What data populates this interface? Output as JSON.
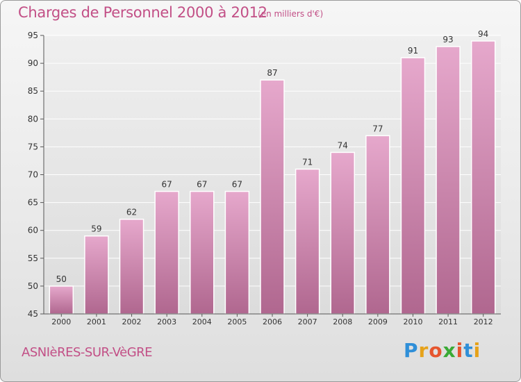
{
  "header": {
    "title": "Charges de Personnel 2000 à 2012",
    "subtitle": "(en milliers d'€)"
  },
  "footer": {
    "commune": "ASNIèRES-SUR-VèGRE",
    "brand_letters": [
      "P",
      "r",
      "o",
      "x",
      "i",
      "t",
      "i"
    ],
    "brand_colors": [
      "#2f8fd8",
      "#e6a21a",
      "#e6552e",
      "#3aaa35",
      "#e6552e",
      "#2f8fd8",
      "#e6a21a"
    ]
  },
  "colors": {
    "bar_top": "#e6a8cc",
    "bar_bottom": "#b0678f",
    "title": "#c24f86"
  },
  "chart_data": {
    "type": "bar",
    "categories": [
      "2000",
      "2001",
      "2002",
      "2003",
      "2004",
      "2005",
      "2006",
      "2007",
      "2008",
      "2009",
      "2010",
      "2011",
      "2012"
    ],
    "values": [
      50,
      59,
      62,
      67,
      67,
      67,
      87,
      71,
      74,
      77,
      91,
      93,
      94
    ],
    "title": "Charges de Personnel 2000 à 2012",
    "subtitle": "(en milliers d'€)",
    "xlabel": "",
    "ylabel": "",
    "ylim": [
      45,
      95
    ],
    "yticks": [
      45,
      50,
      55,
      60,
      65,
      70,
      75,
      80,
      85,
      90,
      95
    ],
    "grid": true,
    "data_labels": true
  }
}
